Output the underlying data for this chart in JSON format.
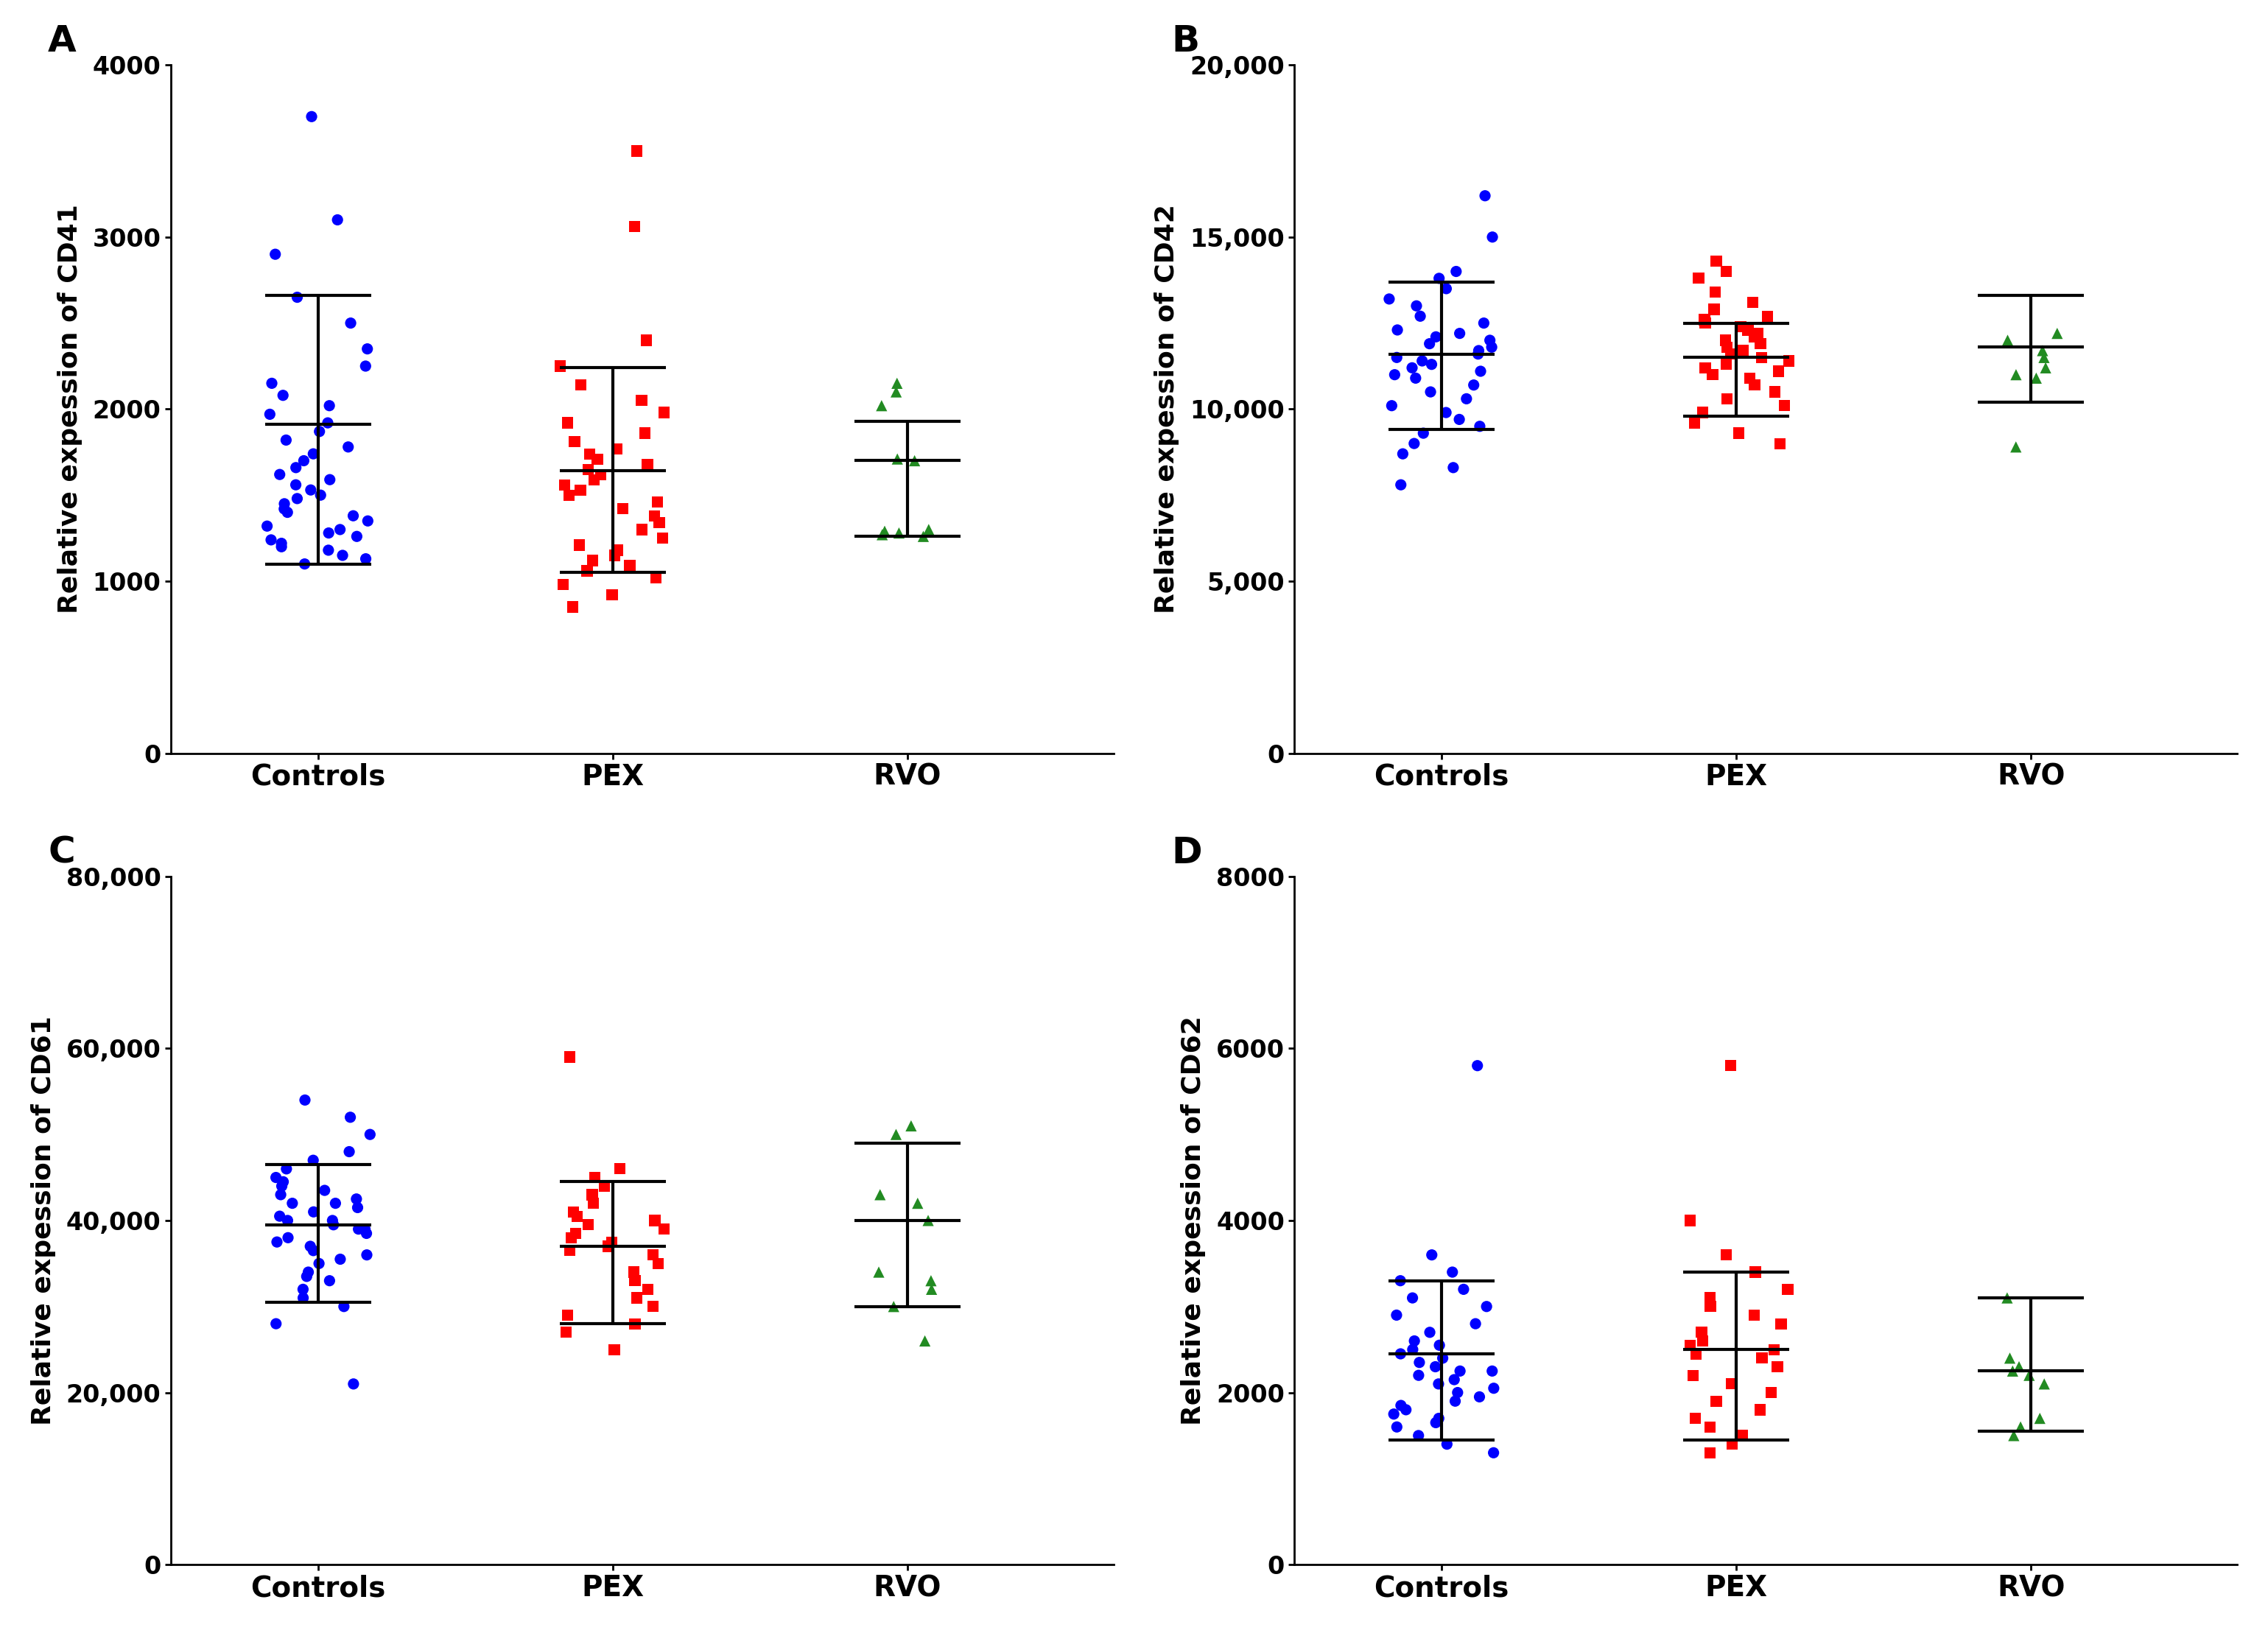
{
  "panel_A": {
    "label": "A",
    "ylabel": "Relative expession of CD41",
    "ylim": [
      0,
      4000
    ],
    "yticks": [
      0,
      1000,
      2000,
      3000,
      4000
    ],
    "ytick_labels": [
      "0",
      "1000",
      "2000",
      "3000",
      "4000"
    ],
    "groups": {
      "Controls": {
        "color": "#0000FF",
        "marker": "o",
        "mean": 1910,
        "sd_high": 2660,
        "sd_low": 1100,
        "values": [
          1100,
          1130,
          1150,
          1180,
          1200,
          1220,
          1240,
          1260,
          1280,
          1300,
          1320,
          1350,
          1380,
          1400,
          1420,
          1450,
          1480,
          1500,
          1530,
          1560,
          1590,
          1620,
          1660,
          1700,
          1740,
          1780,
          1820,
          1870,
          1920,
          1970,
          2020,
          2080,
          2150,
          2250,
          2350,
          2500,
          2650,
          2900,
          3100,
          3700
        ]
      },
      "PEX": {
        "color": "#FF0000",
        "marker": "s",
        "mean": 1640,
        "sd_high": 2240,
        "sd_low": 1050,
        "values": [
          850,
          920,
          980,
          1020,
          1060,
          1090,
          1120,
          1150,
          1180,
          1210,
          1250,
          1300,
          1340,
          1380,
          1420,
          1460,
          1500,
          1530,
          1560,
          1590,
          1620,
          1650,
          1680,
          1710,
          1740,
          1770,
          1810,
          1860,
          1920,
          1980,
          2050,
          2140,
          2250,
          2400,
          3060,
          3500
        ]
      },
      "RVO": {
        "color": "#228B22",
        "marker": "^",
        "mean": 1700,
        "sd_high": 1930,
        "sd_low": 1260,
        "values": [
          1260,
          1270,
          1280,
          1290,
          1300,
          1700,
          1710,
          2020,
          2100,
          2150
        ]
      }
    },
    "group_order": [
      "Controls",
      "PEX",
      "RVO"
    ],
    "x_positions": [
      1,
      2,
      3
    ]
  },
  "panel_B": {
    "label": "B",
    "ylabel": "Relative expession of CD42",
    "ylim": [
      0,
      20000
    ],
    "yticks": [
      0,
      5000,
      10000,
      15000,
      20000
    ],
    "ytick_labels": [
      "0",
      "5,000",
      "10,000",
      "15,000",
      "20,000"
    ],
    "groups": {
      "Controls": {
        "color": "#0000FF",
        "marker": "o",
        "mean": 11600,
        "sd_high": 13700,
        "sd_low": 9400,
        "values": [
          7800,
          8300,
          8700,
          9000,
          9300,
          9500,
          9700,
          9900,
          10100,
          10300,
          10500,
          10700,
          10900,
          11000,
          11100,
          11200,
          11300,
          11400,
          11500,
          11600,
          11700,
          11800,
          11900,
          12000,
          12100,
          12200,
          12300,
          12500,
          12700,
          13000,
          13200,
          13500,
          13800,
          14000,
          15000,
          16200
        ]
      },
      "PEX": {
        "color": "#FF0000",
        "marker": "s",
        "mean": 11500,
        "sd_high": 12500,
        "sd_low": 9800,
        "values": [
          9000,
          9300,
          9600,
          9900,
          10100,
          10300,
          10500,
          10700,
          10900,
          11000,
          11100,
          11200,
          11300,
          11400,
          11500,
          11600,
          11700,
          11800,
          11900,
          12000,
          12100,
          12200,
          12300,
          12400,
          12500,
          12600,
          12700,
          12900,
          13100,
          13400,
          13800,
          14000,
          14300
        ]
      },
      "RVO": {
        "color": "#228B22",
        "marker": "^",
        "mean": 11800,
        "sd_high": 13300,
        "sd_low": 10200,
        "values": [
          8900,
          10900,
          11000,
          11200,
          11500,
          11700,
          12000,
          12200
        ]
      }
    },
    "group_order": [
      "Controls",
      "PEX",
      "RVO"
    ],
    "x_positions": [
      1,
      2,
      3
    ]
  },
  "panel_C": {
    "label": "C",
    "ylabel": "Relative expession of CD61",
    "ylim": [
      0,
      80000
    ],
    "yticks": [
      0,
      20000,
      40000,
      60000,
      80000
    ],
    "ytick_labels": [
      "0",
      "20,000",
      "40,000",
      "60,000",
      "80,000"
    ],
    "groups": {
      "Controls": {
        "color": "#0000FF",
        "marker": "o",
        "mean": 39500,
        "sd_high": 46500,
        "sd_low": 30500,
        "values": [
          21000,
          28000,
          30000,
          31000,
          32000,
          33000,
          33500,
          34000,
          35000,
          35500,
          36000,
          36500,
          37000,
          37500,
          38000,
          38500,
          39000,
          39000,
          39500,
          40000,
          40000,
          40500,
          41000,
          41500,
          42000,
          42000,
          42500,
          43000,
          43500,
          44000,
          44500,
          45000,
          46000,
          47000,
          48000,
          50000,
          52000,
          54000
        ]
      },
      "PEX": {
        "color": "#FF0000",
        "marker": "s",
        "mean": 37000,
        "sd_high": 44500,
        "sd_low": 28000,
        "values": [
          25000,
          27000,
          28000,
          29000,
          30000,
          31000,
          32000,
          33000,
          34000,
          35000,
          36000,
          36500,
          37000,
          37500,
          38000,
          38500,
          39000,
          39500,
          40000,
          40500,
          41000,
          42000,
          43000,
          44000,
          45000,
          46000,
          59000
        ]
      },
      "RVO": {
        "color": "#228B22",
        "marker": "^",
        "mean": 40000,
        "sd_high": 49000,
        "sd_low": 30000,
        "values": [
          26000,
          30000,
          32000,
          33000,
          34000,
          40000,
          42000,
          43000,
          50000,
          51000
        ]
      }
    },
    "group_order": [
      "Controls",
      "PEX",
      "RVO"
    ],
    "x_positions": [
      1,
      2,
      3
    ]
  },
  "panel_D": {
    "label": "D",
    "ylabel": "Relative expession of CD62",
    "ylim": [
      0,
      8000
    ],
    "yticks": [
      0,
      2000,
      4000,
      6000,
      8000
    ],
    "ytick_labels": [
      "0",
      "2000",
      "4000",
      "6000",
      "8000"
    ],
    "groups": {
      "Controls": {
        "color": "#0000FF",
        "marker": "o",
        "mean": 2450,
        "sd_high": 3300,
        "sd_low": 1450,
        "values": [
          1300,
          1400,
          1500,
          1600,
          1650,
          1700,
          1750,
          1800,
          1850,
          1900,
          1950,
          2000,
          2050,
          2100,
          2150,
          2200,
          2250,
          2250,
          2300,
          2350,
          2400,
          2450,
          2500,
          2550,
          2600,
          2700,
          2800,
          2900,
          3000,
          3100,
          3200,
          3300,
          3400,
          3600,
          5800
        ]
      },
      "PEX": {
        "color": "#FF0000",
        "marker": "s",
        "mean": 2500,
        "sd_high": 3400,
        "sd_low": 1450,
        "values": [
          1300,
          1400,
          1500,
          1600,
          1700,
          1800,
          1900,
          2000,
          2100,
          2200,
          2300,
          2400,
          2450,
          2500,
          2550,
          2600,
          2700,
          2800,
          2900,
          3000,
          3100,
          3200,
          3400,
          3600,
          4000,
          5800
        ]
      },
      "RVO": {
        "color": "#228B22",
        "marker": "^",
        "mean": 2250,
        "sd_high": 3100,
        "sd_low": 1550,
        "values": [
          1500,
          1600,
          1700,
          2100,
          2200,
          2250,
          2300,
          2400,
          3100
        ]
      }
    },
    "group_order": [
      "Controls",
      "PEX",
      "RVO"
    ],
    "x_positions": [
      1,
      2,
      3
    ]
  },
  "xtick_labels": [
    "Controls",
    "PEX",
    "RVO"
  ],
  "background_color": "#FFFFFF",
  "panel_label_fontsize": 36,
  "axis_label_fontsize": 26,
  "tick_fontsize": 24,
  "xtick_fontsize": 28,
  "marker_size": 120,
  "error_bar_capsize": 0.18,
  "error_bar_linewidth": 3.0,
  "jitter_seed": 7
}
